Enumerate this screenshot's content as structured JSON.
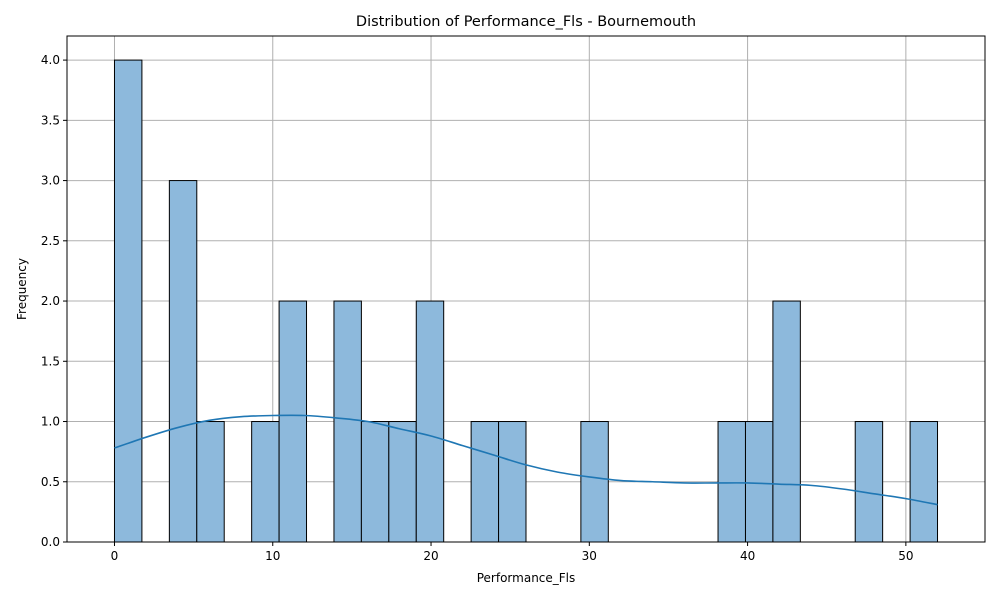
{
  "chart_data": {
    "type": "bar",
    "title": "Distribution of Performance_Fls - Bournemouth",
    "xlabel": "Performance_Fls",
    "ylabel": "Frequency",
    "xlim": [
      -3,
      55
    ],
    "ylim": [
      0,
      4.2
    ],
    "xticks": [
      0,
      10,
      20,
      30,
      40,
      50
    ],
    "yticks": [
      0.0,
      0.5,
      1.0,
      1.5,
      2.0,
      2.5,
      3.0,
      3.5,
      4.0
    ],
    "xtick_labels": [
      "0",
      "10",
      "20",
      "30",
      "40",
      "50"
    ],
    "ytick_labels": [
      "0.0",
      "0.5",
      "1.0",
      "1.5",
      "2.0",
      "2.5",
      "3.0",
      "3.5",
      "4.0"
    ],
    "grid": true,
    "bin_width": 1.733,
    "bins": [
      {
        "x0": 0.0,
        "count": 4
      },
      {
        "x0": 3.467,
        "count": 3
      },
      {
        "x0": 5.2,
        "count": 1
      },
      {
        "x0": 8.667,
        "count": 1
      },
      {
        "x0": 10.4,
        "count": 2
      },
      {
        "x0": 13.867,
        "count": 2
      },
      {
        "x0": 15.6,
        "count": 1
      },
      {
        "x0": 17.333,
        "count": 1
      },
      {
        "x0": 19.067,
        "count": 2
      },
      {
        "x0": 22.533,
        "count": 1
      },
      {
        "x0": 24.267,
        "count": 1
      },
      {
        "x0": 29.467,
        "count": 1
      },
      {
        "x0": 38.133,
        "count": 1
      },
      {
        "x0": 39.867,
        "count": 1
      },
      {
        "x0": 41.6,
        "count": 2
      },
      {
        "x0": 46.8,
        "count": 1
      },
      {
        "x0": 50.267,
        "count": 1
      }
    ],
    "kde": {
      "x": [
        0,
        2,
        4,
        6,
        8,
        10,
        12,
        14,
        16,
        18,
        20,
        22,
        24,
        26,
        28,
        30,
        32,
        34,
        36,
        38,
        40,
        42,
        44,
        46,
        48,
        50,
        52
      ],
      "y": [
        0.78,
        0.87,
        0.95,
        1.01,
        1.04,
        1.05,
        1.05,
        1.03,
        1.0,
        0.94,
        0.88,
        0.8,
        0.72,
        0.64,
        0.58,
        0.54,
        0.51,
        0.5,
        0.49,
        0.49,
        0.49,
        0.48,
        0.47,
        0.44,
        0.4,
        0.36,
        0.31
      ]
    },
    "colors": {
      "bar_fill": "#8db9dc",
      "bar_edge": "#000000",
      "kde_line": "#1f77b4",
      "grid": "#b0b0b0"
    }
  }
}
